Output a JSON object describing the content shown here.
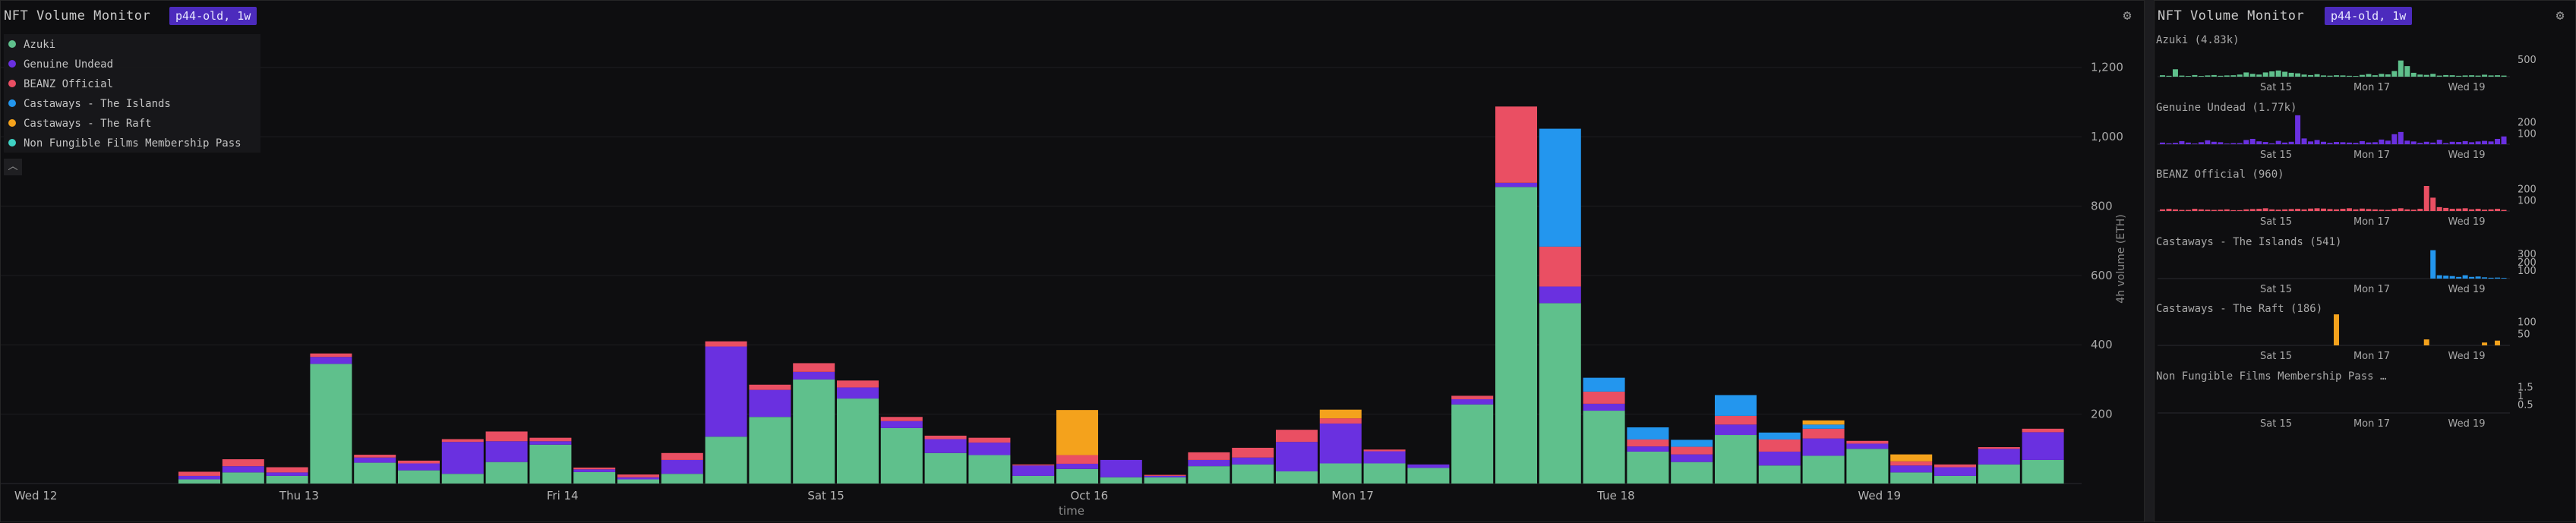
{
  "main": {
    "title": "NFT Volume Monitor",
    "badge": "p44-old, 1w",
    "settings_icon": "gear-icon",
    "collapse_icon": "chevron-up-icon",
    "colors": {
      "Azuki": "#5fc08c",
      "Genuine Undead": "#6a30e0",
      "BEANZ Official": "#ea4f63",
      "Castaways - The Islands": "#2396ee",
      "Castaways - The Raft": "#f4a21c",
      "Non Fungible Films Membership Pass": "#3fd2c4"
    },
    "legend": [
      "Azuki",
      "Genuine Undead",
      "BEANZ Official",
      "Castaways - The Islands",
      "Castaways - The Raft",
      "Non Fungible Films Membership Pass"
    ]
  },
  "chart_data": [
    {
      "type": "bar",
      "stacked": true,
      "xlabel": "time",
      "ylabel": "4h volume (ETH)",
      "ylim": [
        0,
        1300
      ],
      "yticks": [
        "200",
        "400",
        "600",
        "800",
        "1,000",
        "1,200"
      ],
      "ytick_values": [
        200,
        400,
        600,
        800,
        1000,
        1200
      ],
      "date_ticks": [
        {
          "label": "Wed 12",
          "bar": -3.25
        },
        {
          "label": "Thu 13",
          "bar": 2.75
        },
        {
          "label": "Fri 14",
          "bar": 8.75
        },
        {
          "label": "Sat 15",
          "bar": 14.75
        },
        {
          "label": "Oct 16",
          "bar": 20.75
        },
        {
          "label": "Mon 17",
          "bar": 26.75
        },
        {
          "label": "Tue 18",
          "bar": 32.75
        },
        {
          "label": "Wed 19",
          "bar": 38.75
        }
      ],
      "series": [
        {
          "name": "Azuki",
          "values": [
            12,
            32,
            22,
            345,
            60,
            38,
            28,
            62,
            112,
            33,
            12,
            28,
            135,
            192,
            300,
            245,
            160,
            88,
            82,
            22,
            42,
            18,
            18,
            50,
            55,
            35,
            58,
            58,
            45,
            228,
            855,
            520,
            210,
            92,
            62,
            140,
            52,
            80,
            100,
            32,
            22,
            55,
            68
          ]
        },
        {
          "name": "Genuine Undead",
          "values": [
            10,
            18,
            10,
            20,
            15,
            20,
            92,
            60,
            10,
            8,
            6,
            40,
            260,
            78,
            22,
            32,
            20,
            40,
            36,
            30,
            15,
            50,
            4,
            18,
            20,
            85,
            115,
            35,
            10,
            15,
            12,
            48,
            20,
            15,
            22,
            30,
            40,
            50,
            15,
            20,
            25,
            45,
            80
          ]
        },
        {
          "name": "BEANZ Official",
          "values": [
            12,
            20,
            15,
            10,
            8,
            8,
            8,
            28,
            10,
            5,
            8,
            20,
            15,
            15,
            25,
            20,
            12,
            10,
            14,
            3,
            25,
            0,
            3,
            22,
            28,
            35,
            15,
            5,
            0,
            10,
            220,
            115,
            35,
            20,
            22,
            25,
            35,
            28,
            8,
            12,
            8,
            5,
            10
          ]
        },
        {
          "name": "Castaways - The Islands",
          "values": [
            0,
            0,
            0,
            0,
            0,
            0,
            0,
            0,
            0,
            0,
            0,
            0,
            0,
            0,
            0,
            0,
            0,
            0,
            0,
            0,
            0,
            0,
            0,
            0,
            0,
            0,
            0,
            0,
            0,
            0,
            0,
            340,
            40,
            35,
            20,
            60,
            20,
            12,
            0,
            0,
            0,
            0,
            0
          ]
        },
        {
          "name": "Castaways - The Raft",
          "values": [
            0,
            0,
            0,
            0,
            0,
            0,
            0,
            0,
            0,
            0,
            0,
            0,
            0,
            0,
            0,
            0,
            0,
            0,
            0,
            0,
            130,
            0,
            0,
            0,
            0,
            0,
            25,
            0,
            0,
            0,
            0,
            0,
            0,
            0,
            0,
            0,
            0,
            12,
            0,
            20,
            0,
            0,
            0
          ]
        },
        {
          "name": "Non Fungible Films Membership Pass",
          "values": [
            0,
            0,
            0,
            0,
            0,
            0,
            0,
            0,
            0,
            0,
            0,
            0,
            0,
            0,
            0,
            0,
            0,
            0,
            0,
            0,
            0,
            0,
            0,
            0,
            0,
            0,
            0,
            0,
            0,
            0,
            0,
            0,
            0,
            0,
            0,
            0,
            0,
            0,
            0,
            0,
            0,
            0,
            0
          ]
        }
      ]
    },
    {
      "type": "bar",
      "title": "Azuki (4.83k)",
      "yticks": [
        "500"
      ],
      "ytick_values": [
        500
      ],
      "ylim": [
        0,
        950
      ],
      "xticks": [
        "Sat 15",
        "Mon 17",
        "Wed 19"
      ],
      "color": "#5fc08c",
      "values": [
        40,
        25,
        210,
        30,
        20,
        45,
        20,
        35,
        45,
        25,
        35,
        40,
        60,
        120,
        80,
        60,
        120,
        150,
        175,
        140,
        110,
        95,
        60,
        45,
        70,
        35,
        28,
        40,
        35,
        25,
        20,
        50,
        75,
        40,
        80,
        65,
        160,
        460,
        300,
        110,
        60,
        50,
        80,
        30,
        45,
        40,
        25,
        35,
        40,
        30,
        55,
        35,
        40,
        30
      ]
    },
    {
      "type": "bar",
      "title": "Genuine Undead (1.77k)",
      "yticks": [
        "100",
        "200"
      ],
      "ytick_values": [
        100,
        200
      ],
      "ylim": [
        0,
        300
      ],
      "xticks": [
        "Sat 15",
        "Mon 17",
        "Wed 19"
      ],
      "color": "#6a30e0",
      "values": [
        15,
        8,
        12,
        28,
        15,
        6,
        18,
        35,
        22,
        18,
        6,
        10,
        10,
        38,
        48,
        26,
        20,
        8,
        30,
        15,
        22,
        260,
        52,
        25,
        38,
        22,
        12,
        20,
        18,
        15,
        12,
        28,
        16,
        18,
        42,
        32,
        90,
        110,
        32,
        25,
        12,
        22,
        15,
        40,
        10,
        22,
        20,
        28,
        18,
        25,
        30,
        25,
        48,
        70
      ]
    },
    {
      "type": "bar",
      "title": "BEANZ Official (960)",
      "yticks": [
        "100",
        "200"
      ],
      "ytick_values": [
        100,
        200
      ],
      "ylim": [
        0,
        300
      ],
      "xticks": [
        "Sat 15",
        "Mon 17",
        "Wed 19"
      ],
      "color": "#ea4f63",
      "values": [
        15,
        20,
        15,
        10,
        10,
        20,
        15,
        12,
        10,
        12,
        15,
        8,
        8,
        15,
        18,
        20,
        25,
        15,
        12,
        15,
        18,
        20,
        15,
        22,
        25,
        22,
        18,
        15,
        20,
        25,
        15,
        22,
        18,
        15,
        12,
        10,
        20,
        25,
        15,
        12,
        20,
        225,
        120,
        35,
        28,
        20,
        22,
        25,
        15,
        20,
        12,
        15,
        20,
        10
      ]
    },
    {
      "type": "bar",
      "title": "Castaways - The Islands (541)",
      "yticks": [
        "100",
        "200",
        "300"
      ],
      "ytick_values": [
        100,
        200,
        300
      ],
      "ylim": [
        0,
        400
      ],
      "xticks": [
        "Sat 15",
        "Mon 17",
        "Wed 19"
      ],
      "color": "#2396ee",
      "values": [
        0,
        0,
        0,
        0,
        0,
        0,
        0,
        0,
        0,
        0,
        0,
        0,
        0,
        0,
        0,
        0,
        0,
        0,
        0,
        0,
        0,
        0,
        0,
        0,
        0,
        0,
        0,
        0,
        0,
        0,
        0,
        0,
        0,
        0,
        0,
        0,
        0,
        0,
        0,
        0,
        0,
        0,
        340,
        40,
        35,
        30,
        20,
        40,
        20,
        25,
        15,
        10,
        12,
        8
      ]
    },
    {
      "type": "bar",
      "title": "Castaways - The Raft (186)",
      "yticks": [
        "50",
        "100"
      ],
      "ytick_values": [
        50,
        100
      ],
      "ylim": [
        0,
        140
      ],
      "xticks": [
        "Sat 15",
        "Mon 17",
        "Wed 19"
      ],
      "color": "#f4a21c",
      "values": [
        0,
        0,
        0,
        0,
        0,
        0,
        0,
        0,
        0,
        0,
        0,
        0,
        0,
        0,
        0,
        0,
        0,
        0,
        0,
        0,
        0,
        0,
        0,
        0,
        0,
        0,
        0,
        130,
        0,
        0,
        0,
        0,
        0,
        0,
        0,
        0,
        0,
        0,
        0,
        0,
        0,
        25,
        0,
        0,
        0,
        0,
        0,
        0,
        0,
        0,
        12,
        0,
        20,
        0
      ]
    },
    {
      "type": "bar",
      "title": "Non Fungible Films Membership Pass …",
      "yticks": [
        "0.5",
        "1",
        "1.5"
      ],
      "ytick_values": [
        0.5,
        1,
        1.5
      ],
      "ylim": [
        0,
        1.9
      ],
      "xticks": [
        "Sat 15",
        "Mon 17",
        "Wed 19"
      ],
      "color": "#3fd2c4",
      "values": [
        0,
        0,
        0,
        0,
        0,
        0,
        0,
        0,
        0,
        0,
        0,
        0,
        0,
        0,
        0,
        0,
        0,
        0,
        0,
        0,
        0,
        0,
        0,
        0,
        0,
        0,
        0,
        0,
        0,
        0,
        0,
        0,
        0,
        0,
        0,
        0,
        0,
        0,
        0,
        0,
        0,
        0,
        0,
        0,
        0,
        0,
        0,
        0,
        0,
        0,
        0,
        0,
        0,
        0
      ]
    }
  ],
  "right": {
    "title": "NFT Volume Monitor",
    "badge": "p44-old, 1w",
    "settings_icon": "gear-icon"
  }
}
